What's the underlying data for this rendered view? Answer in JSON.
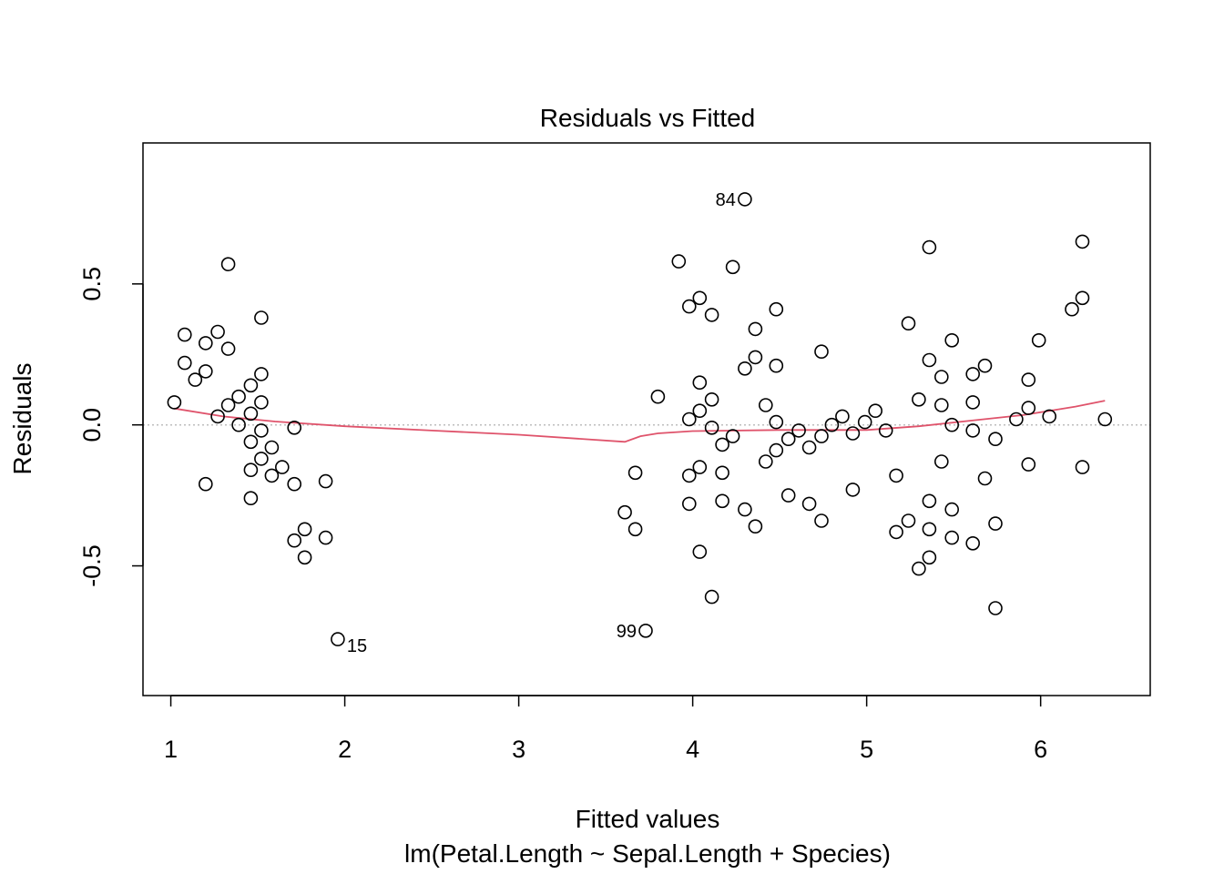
{
  "chart_data": {
    "type": "scatter",
    "title": "Residuals vs Fitted",
    "xlabel": "Fitted values",
    "ylabel": "Residuals",
    "subtitle": "lm(Petal.Length ~ Sepal.Length + Species)",
    "xlim": [
      0.84,
      6.63
    ],
    "ylim": [
      -0.96,
      1.0
    ],
    "xticks": [
      1,
      2,
      3,
      4,
      5,
      6
    ],
    "yticks": [
      -0.5,
      0.0,
      0.5
    ],
    "ytick_labels": [
      "-0.5",
      "0.0",
      "0.5"
    ],
    "reference_line": {
      "y": 0,
      "style": "dotted",
      "color": "#bebebe"
    },
    "smooth_color": "#df536b",
    "point_color": "#000000",
    "points": [
      {
        "x": 1.02,
        "y": 0.08
      },
      {
        "x": 1.08,
        "y": 0.32
      },
      {
        "x": 1.08,
        "y": 0.22
      },
      {
        "x": 1.14,
        "y": 0.16
      },
      {
        "x": 1.2,
        "y": 0.29
      },
      {
        "x": 1.2,
        "y": 0.19
      },
      {
        "x": 1.2,
        "y": -0.21
      },
      {
        "x": 1.27,
        "y": 0.33
      },
      {
        "x": 1.27,
        "y": 0.03
      },
      {
        "x": 1.33,
        "y": 0.57
      },
      {
        "x": 1.33,
        "y": 0.27
      },
      {
        "x": 1.33,
        "y": 0.07
      },
      {
        "x": 1.39,
        "y": 0.1
      },
      {
        "x": 1.39,
        "y": 0.0
      },
      {
        "x": 1.46,
        "y": 0.14
      },
      {
        "x": 1.46,
        "y": 0.04
      },
      {
        "x": 1.46,
        "y": -0.06
      },
      {
        "x": 1.46,
        "y": -0.16
      },
      {
        "x": 1.46,
        "y": -0.26
      },
      {
        "x": 1.52,
        "y": 0.38
      },
      {
        "x": 1.52,
        "y": 0.18
      },
      {
        "x": 1.52,
        "y": 0.08
      },
      {
        "x": 1.52,
        "y": -0.02
      },
      {
        "x": 1.52,
        "y": -0.12
      },
      {
        "x": 1.58,
        "y": -0.08
      },
      {
        "x": 1.58,
        "y": -0.18
      },
      {
        "x": 1.64,
        "y": -0.15
      },
      {
        "x": 1.71,
        "y": -0.01
      },
      {
        "x": 1.71,
        "y": -0.21
      },
      {
        "x": 1.71,
        "y": -0.41
      },
      {
        "x": 1.77,
        "y": -0.37
      },
      {
        "x": 1.77,
        "y": -0.47
      },
      {
        "x": 1.89,
        "y": -0.2
      },
      {
        "x": 1.89,
        "y": -0.4
      },
      {
        "x": 1.96,
        "y": -0.76,
        "label": "15"
      },
      {
        "x": 3.61,
        "y": -0.31
      },
      {
        "x": 3.67,
        "y": -0.17
      },
      {
        "x": 3.67,
        "y": -0.37
      },
      {
        "x": 3.73,
        "y": -0.73,
        "label": "99"
      },
      {
        "x": 3.8,
        "y": 0.1
      },
      {
        "x": 3.92,
        "y": 0.58
      },
      {
        "x": 3.98,
        "y": 0.42
      },
      {
        "x": 3.98,
        "y": 0.02
      },
      {
        "x": 3.98,
        "y": -0.18
      },
      {
        "x": 3.98,
        "y": -0.28
      },
      {
        "x": 4.04,
        "y": 0.45
      },
      {
        "x": 4.04,
        "y": 0.15
      },
      {
        "x": 4.04,
        "y": 0.05
      },
      {
        "x": 4.04,
        "y": -0.15
      },
      {
        "x": 4.04,
        "y": -0.45
      },
      {
        "x": 4.11,
        "y": 0.39
      },
      {
        "x": 4.11,
        "y": 0.09
      },
      {
        "x": 4.11,
        "y": -0.01
      },
      {
        "x": 4.11,
        "y": -0.61
      },
      {
        "x": 4.17,
        "y": -0.07
      },
      {
        "x": 4.17,
        "y": -0.17
      },
      {
        "x": 4.17,
        "y": -0.27
      },
      {
        "x": 4.23,
        "y": 0.56
      },
      {
        "x": 4.23,
        "y": -0.04
      },
      {
        "x": 4.3,
        "y": 0.8,
        "label": "84"
      },
      {
        "x": 4.3,
        "y": 0.2
      },
      {
        "x": 4.3,
        "y": -0.3
      },
      {
        "x": 4.36,
        "y": 0.34
      },
      {
        "x": 4.36,
        "y": 0.24
      },
      {
        "x": 4.36,
        "y": -0.36
      },
      {
        "x": 4.42,
        "y": 0.07
      },
      {
        "x": 4.42,
        "y": -0.13
      },
      {
        "x": 4.48,
        "y": 0.41
      },
      {
        "x": 4.48,
        "y": 0.21
      },
      {
        "x": 4.48,
        "y": 0.01
      },
      {
        "x": 4.48,
        "y": -0.09
      },
      {
        "x": 4.55,
        "y": -0.05
      },
      {
        "x": 4.55,
        "y": -0.25
      },
      {
        "x": 4.61,
        "y": -0.02
      },
      {
        "x": 4.67,
        "y": -0.08
      },
      {
        "x": 4.67,
        "y": -0.28
      },
      {
        "x": 4.74,
        "y": 0.26
      },
      {
        "x": 4.74,
        "y": -0.04
      },
      {
        "x": 4.74,
        "y": -0.34
      },
      {
        "x": 4.8,
        "y": -0.0
      },
      {
        "x": 4.86,
        "y": 0.03
      },
      {
        "x": 4.92,
        "y": -0.03
      },
      {
        "x": 4.92,
        "y": -0.23
      },
      {
        "x": 4.99,
        "y": 0.01
      },
      {
        "x": 5.05,
        "y": 0.05
      },
      {
        "x": 5.11,
        "y": -0.02
      },
      {
        "x": 5.17,
        "y": -0.18
      },
      {
        "x": 5.17,
        "y": -0.38
      },
      {
        "x": 5.24,
        "y": 0.36
      },
      {
        "x": 5.24,
        "y": -0.34
      },
      {
        "x": 5.3,
        "y": 0.09
      },
      {
        "x": 5.3,
        "y": -0.51
      },
      {
        "x": 5.36,
        "y": 0.63
      },
      {
        "x": 5.36,
        "y": 0.23
      },
      {
        "x": 5.36,
        "y": -0.27
      },
      {
        "x": 5.36,
        "y": -0.37
      },
      {
        "x": 5.36,
        "y": -0.47
      },
      {
        "x": 5.43,
        "y": 0.17
      },
      {
        "x": 5.43,
        "y": 0.07
      },
      {
        "x": 5.43,
        "y": -0.13
      },
      {
        "x": 5.49,
        "y": 0.3
      },
      {
        "x": 5.49,
        "y": 0.0
      },
      {
        "x": 5.49,
        "y": -0.3
      },
      {
        "x": 5.49,
        "y": -0.4
      },
      {
        "x": 5.61,
        "y": 0.18
      },
      {
        "x": 5.61,
        "y": 0.08
      },
      {
        "x": 5.61,
        "y": -0.02
      },
      {
        "x": 5.61,
        "y": -0.42
      },
      {
        "x": 5.68,
        "y": 0.21
      },
      {
        "x": 5.68,
        "y": -0.19
      },
      {
        "x": 5.74,
        "y": -0.05
      },
      {
        "x": 5.74,
        "y": -0.35
      },
      {
        "x": 5.74,
        "y": -0.65
      },
      {
        "x": 5.86,
        "y": 0.02
      },
      {
        "x": 5.93,
        "y": 0.16
      },
      {
        "x": 5.93,
        "y": 0.06
      },
      {
        "x": 5.93,
        "y": -0.14
      },
      {
        "x": 5.99,
        "y": 0.3
      },
      {
        "x": 6.05,
        "y": 0.03
      },
      {
        "x": 6.18,
        "y": 0.41
      },
      {
        "x": 6.24,
        "y": 0.65
      },
      {
        "x": 6.24,
        "y": 0.45
      },
      {
        "x": 6.24,
        "y": -0.15
      },
      {
        "x": 6.37,
        "y": 0.02
      }
    ],
    "smooth_line": [
      {
        "x": 1.02,
        "y": 0.058
      },
      {
        "x": 1.3,
        "y": 0.03
      },
      {
        "x": 1.6,
        "y": 0.012
      },
      {
        "x": 2.0,
        "y": -0.005
      },
      {
        "x": 2.5,
        "y": -0.02
      },
      {
        "x": 3.0,
        "y": -0.035
      },
      {
        "x": 3.61,
        "y": -0.06
      },
      {
        "x": 3.7,
        "y": -0.04
      },
      {
        "x": 3.8,
        "y": -0.03
      },
      {
        "x": 4.0,
        "y": -0.022
      },
      {
        "x": 4.5,
        "y": -0.018
      },
      {
        "x": 5.0,
        "y": -0.018
      },
      {
        "x": 5.3,
        "y": -0.005
      },
      {
        "x": 5.6,
        "y": 0.015
      },
      {
        "x": 5.9,
        "y": 0.035
      },
      {
        "x": 6.2,
        "y": 0.065
      },
      {
        "x": 6.37,
        "y": 0.086
      }
    ]
  }
}
